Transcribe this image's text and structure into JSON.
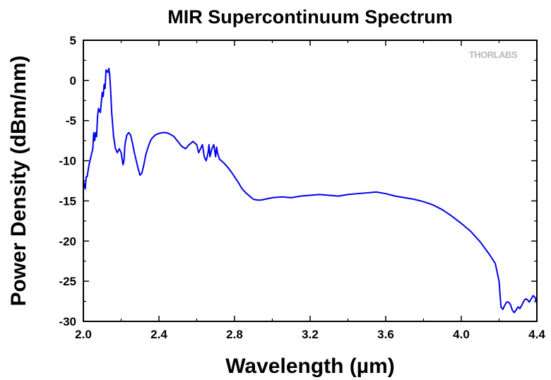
{
  "chart_data": {
    "type": "line",
    "title": "MIR Supercontinuum Spectrum",
    "xlabel": "Wavelength (µm)",
    "ylabel": "Power Density (dBm/nm)",
    "xlim": [
      2.0,
      4.4
    ],
    "ylim": [
      -30,
      5
    ],
    "xticks": [
      "2.0",
      "2.4",
      "2.8",
      "3.2",
      "3.6",
      "4.0",
      "4.4"
    ],
    "yticks": [
      "5",
      "0",
      "-5",
      "-10",
      "-15",
      "-20",
      "-25",
      "-30"
    ],
    "grid": false,
    "line_color": "#0000ee",
    "watermark": "THORLABS",
    "series": [
      {
        "x": [
          2.0,
          2.01,
          2.015,
          2.02,
          2.03,
          2.04,
          2.05,
          2.055,
          2.06,
          2.065,
          2.07,
          2.075,
          2.08,
          2.09,
          2.1,
          2.105,
          2.11,
          2.115,
          2.12,
          2.13,
          2.135,
          2.14,
          2.145,
          2.15,
          2.16,
          2.17,
          2.18,
          2.19,
          2.2,
          2.21,
          2.215,
          2.22,
          2.23,
          2.24,
          2.25,
          2.26,
          2.27,
          2.28,
          2.29,
          2.3,
          2.31,
          2.32,
          2.33,
          2.34,
          2.35,
          2.36,
          2.38,
          2.4,
          2.42,
          2.44,
          2.46,
          2.48,
          2.5,
          2.52,
          2.54,
          2.56,
          2.58,
          2.6,
          2.61,
          2.62,
          2.63,
          2.64,
          2.65,
          2.66,
          2.665,
          2.67,
          2.68,
          2.69,
          2.7,
          2.705,
          2.71,
          2.72,
          2.73,
          2.74,
          2.76,
          2.78,
          2.8,
          2.82,
          2.84,
          2.86,
          2.88,
          2.9,
          2.92,
          2.94,
          2.96,
          2.98,
          3.0,
          3.05,
          3.1,
          3.15,
          3.2,
          3.25,
          3.3,
          3.35,
          3.4,
          3.45,
          3.5,
          3.55,
          3.6,
          3.65,
          3.7,
          3.75,
          3.8,
          3.85,
          3.9,
          3.95,
          4.0,
          4.05,
          4.1,
          4.15,
          4.18,
          4.2,
          4.21,
          4.22,
          4.23,
          4.24,
          4.25,
          4.26,
          4.27,
          4.28,
          4.29,
          4.3,
          4.31,
          4.32,
          4.33,
          4.34,
          4.35,
          4.36,
          4.37,
          4.38,
          4.39,
          4.4
        ],
        "y": [
          -12.5,
          -13.5,
          -12.0,
          -12.0,
          -10.5,
          -9.5,
          -8.5,
          -6.5,
          -7.5,
          -6.5,
          -7.0,
          -4.5,
          -3.5,
          -4.0,
          -1.5,
          -2.0,
          -0.5,
          -1.0,
          1.3,
          1.0,
          1.5,
          0.5,
          -1.5,
          -4.0,
          -7.0,
          -8.5,
          -9.0,
          -8.5,
          -9.0,
          -10.5,
          -10.0,
          -8.0,
          -6.8,
          -6.5,
          -6.8,
          -7.8,
          -9.0,
          -10.0,
          -11.0,
          -11.8,
          -11.5,
          -10.5,
          -9.3,
          -8.5,
          -7.8,
          -7.3,
          -6.8,
          -6.6,
          -6.5,
          -6.5,
          -6.7,
          -7.0,
          -7.6,
          -8.2,
          -8.5,
          -8.0,
          -7.6,
          -8.0,
          -9.0,
          -8.5,
          -8.0,
          -9.5,
          -10.0,
          -9.0,
          -8.0,
          -9.5,
          -8.5,
          -8.0,
          -9.5,
          -8.3,
          -9.0,
          -9.8,
          -10.0,
          -10.2,
          -10.7,
          -11.3,
          -12.0,
          -12.7,
          -13.5,
          -14.0,
          -14.4,
          -14.8,
          -14.9,
          -14.9,
          -14.8,
          -14.7,
          -14.6,
          -14.5,
          -14.6,
          -14.4,
          -14.3,
          -14.2,
          -14.3,
          -14.4,
          -14.2,
          -14.1,
          -14.0,
          -13.9,
          -14.1,
          -14.4,
          -14.6,
          -14.8,
          -15.1,
          -15.5,
          -16.1,
          -16.9,
          -17.8,
          -18.8,
          -20.1,
          -21.7,
          -22.8,
          -25.0,
          -28.2,
          -28.5,
          -28.0,
          -27.6,
          -27.6,
          -27.9,
          -28.6,
          -28.9,
          -28.6,
          -28.2,
          -28.4,
          -28.0,
          -27.5,
          -27.2,
          -27.3,
          -27.6,
          -27.2,
          -26.8,
          -27.0,
          -27.8
        ]
      }
    ]
  }
}
